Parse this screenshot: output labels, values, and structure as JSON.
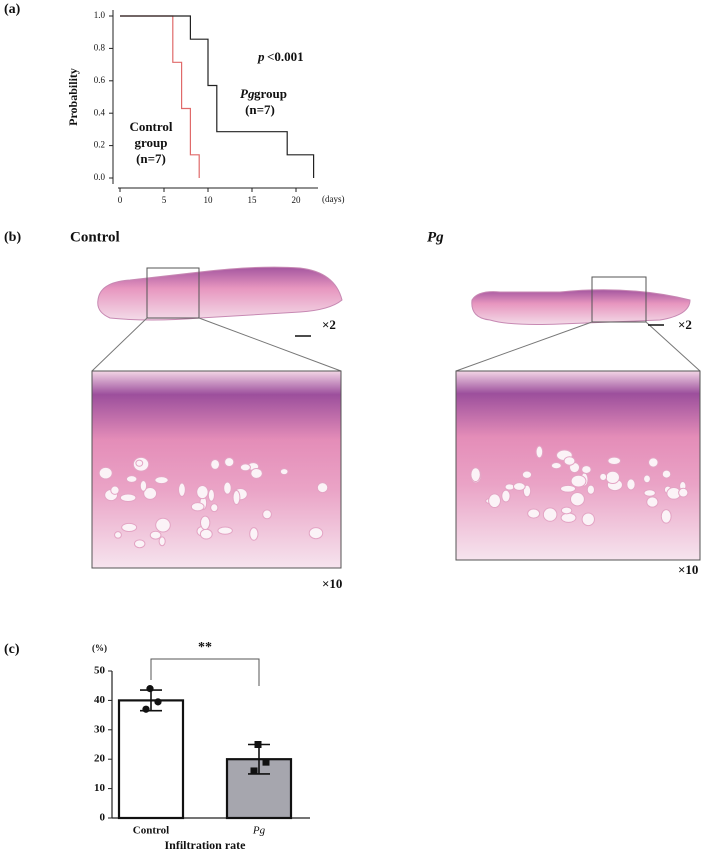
{
  "figure": {
    "panel_labels": [
      "(a)",
      "(b)",
      "(c)"
    ],
    "histology": {
      "control_title": "Control",
      "pg_title": "Pg",
      "magnifications": [
        "×2",
        "×10",
        "×2",
        "×10"
      ]
    }
  },
  "chart_data": [
    {
      "type": "line",
      "step": true,
      "ylabel": "Probability",
      "xlabel": "(days)",
      "annotations": [
        {
          "text": "p",
          "italic": true
        },
        {
          "text": "<0.001"
        },
        {
          "text": "Pg",
          "italic": true
        },
        {
          "text": "group"
        },
        {
          "text": "(n=7)"
        },
        {
          "text": "Control",
          "color": "#e0201b"
        },
        {
          "text": "group",
          "color": "#e0201b"
        },
        {
          "text": "(n=7)",
          "color": "#e0201b"
        }
      ],
      "series": [
        {
          "color": "#e06a6a",
          "x": [
            0,
            6,
            6,
            7,
            7,
            8,
            8,
            9,
            9
          ],
          "values": [
            1,
            1,
            0.714,
            0.714,
            0.429,
            0.429,
            0.143,
            0.143,
            0
          ]
        },
        {
          "color": "#222222",
          "x": [
            0,
            8,
            8,
            10,
            10,
            11,
            11,
            19,
            19,
            22,
            22
          ],
          "values": [
            1,
            1,
            0.857,
            0.857,
            0.571,
            0.571,
            0.286,
            0.286,
            0.143,
            0.143,
            0
          ]
        }
      ],
      "xlim": [
        0,
        22.5
      ],
      "xticks": [
        0,
        5,
        10,
        15,
        20
      ],
      "ylim": [
        0,
        1
      ],
      "yticks": [
        {
          "value": 0,
          "label": "0.0"
        },
        {
          "value": 0.2,
          "label": "0.2"
        },
        {
          "value": 0.4,
          "label": "0.4"
        },
        {
          "value": 0.6,
          "label": "0.6"
        },
        {
          "value": 0.8,
          "label": "0.8"
        },
        {
          "value": 1,
          "label": "1.0"
        }
      ]
    },
    {
      "type": "bar",
      "categories": [
        "Control",
        "Pg"
      ],
      "category_italic": [
        false,
        true
      ],
      "values": [
        40,
        20
      ],
      "errors": [
        3.5,
        5
      ],
      "points": [
        [
          44,
          39.5,
          37
        ],
        [
          25,
          19,
          16
        ]
      ],
      "colors": [
        "#ffffff",
        "#a6a6ae"
      ],
      "ylabel": "(%)",
      "xlabel": "Infiltration rate",
      "significance": "**",
      "ylim": [
        0,
        50
      ],
      "yticks": [
        0,
        10,
        20,
        30,
        40,
        50
      ]
    }
  ]
}
